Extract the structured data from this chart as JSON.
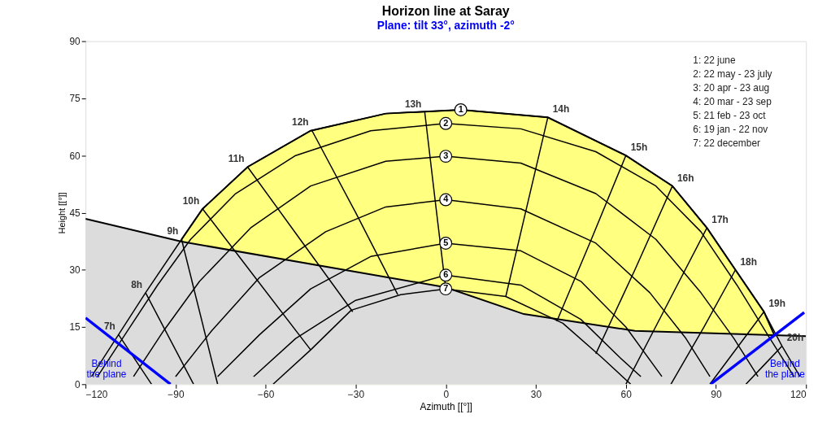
{
  "chart_data": {
    "type": "line",
    "title": "Horizon line at Saray",
    "subtitle": "Plane: tilt 33°, azimuth -2°",
    "xlabel": "Azimuth [[°]]",
    "ylabel": "Height [[°]]",
    "xlim": [
      -120,
      120
    ],
    "xticks": [
      -120,
      -90,
      -60,
      -30,
      0,
      30,
      60,
      90,
      120
    ],
    "ylim": [
      0,
      90
    ],
    "yticks": [
      0,
      15,
      30,
      45,
      60,
      75,
      90
    ],
    "grid": false,
    "marker": "none",
    "series": [
      {
        "type": "area",
        "color": "#ffff80",
        "x": [
          -88,
          -81,
          -66,
          -45,
          -20,
          5,
          34,
          60,
          75.5,
          87,
          96.5,
          106,
          109.5
        ],
        "values": [
          38,
          46,
          57,
          66.5,
          71,
          72,
          70,
          60,
          52,
          41,
          30,
          19,
          12.8
        ]
      },
      {
        "type": "area",
        "color": "#dcdcdc",
        "x": [
          -120,
          -88,
          0,
          26,
          63,
          120
        ],
        "values": [
          43.4,
          37.4,
          25.4,
          18.4,
          14,
          12.6
        ]
      },
      {
        "type": "line",
        "color": "#000000",
        "x": [
          -118,
          -109,
          -100,
          -88,
          -81,
          -66,
          -45,
          -20,
          5,
          34,
          60,
          75.5,
          87,
          96.5,
          106,
          112,
          118
        ],
        "values": [
          2,
          13,
          24,
          38,
          46,
          57,
          66.5,
          71,
          72,
          70,
          60,
          52,
          41,
          30,
          19,
          10,
          2
        ]
      },
      {
        "type": "line",
        "color": "#000000",
        "x": [
          -116,
          -106,
          -96,
          -85,
          -70,
          -50,
          -25,
          0,
          25,
          50,
          70,
          85,
          97,
          108,
          116
        ],
        "values": [
          2,
          14,
          26,
          38,
          50,
          60,
          66.5,
          68.4,
          67,
          61,
          52,
          40,
          26,
          12,
          2
        ]
      },
      {
        "type": "line",
        "color": "#000000",
        "x": [
          -104,
          -94,
          -82,
          -65,
          -45,
          -20,
          0,
          25,
          50,
          70,
          85,
          96,
          104
        ],
        "values": [
          2,
          14,
          27,
          41,
          52,
          58.5,
          59.8,
          58,
          50,
          38,
          24,
          12,
          2
        ]
      },
      {
        "type": "line",
        "color": "#000000",
        "x": [
          -90,
          -78,
          -62,
          -40,
          -20,
          0,
          25,
          50,
          68,
          80,
          88
        ],
        "values": [
          2,
          14,
          28,
          40,
          46.5,
          48.4,
          46,
          37,
          24,
          12,
          2
        ]
      },
      {
        "type": "line",
        "color": "#000000",
        "x": [
          -76,
          -62,
          -45,
          -25,
          0,
          25,
          45,
          60,
          72
        ],
        "values": [
          2,
          13,
          25,
          33.5,
          37,
          35,
          27,
          15,
          2
        ]
      },
      {
        "type": "line",
        "color": "#000000",
        "x": [
          -64,
          -50,
          -30,
          0,
          25,
          45,
          58,
          65
        ],
        "values": [
          2,
          12,
          22,
          28.6,
          26,
          17,
          7,
          2
        ]
      },
      {
        "type": "line",
        "color": "#000000",
        "x": [
          -57.5,
          -45,
          -31.5,
          -15,
          0,
          20,
          39,
          52,
          61.6
        ],
        "values": [
          0,
          9,
          19.4,
          23.5,
          25,
          23,
          16,
          7,
          0
        ]
      },
      {
        "type": "line",
        "color": "#000000",
        "x": [
          -109,
          -103.5,
          -98
        ],
        "values": [
          13,
          6.5,
          0
        ]
      },
      {
        "type": "line",
        "color": "#000000",
        "x": [
          -100,
          -92,
          -84
        ],
        "values": [
          24,
          12,
          0
        ]
      },
      {
        "type": "line",
        "color": "#000000",
        "x": [
          -88,
          -82,
          -76
        ],
        "values": [
          38,
          19,
          0
        ]
      },
      {
        "type": "line",
        "color": "#000000",
        "x": [
          -81,
          -63,
          -45
        ],
        "values": [
          46,
          27.5,
          9
        ]
      },
      {
        "type": "line",
        "color": "#000000",
        "x": [
          -66,
          -48.5,
          -31
        ],
        "values": [
          57,
          38,
          19
        ]
      },
      {
        "type": "line",
        "color": "#000000",
        "x": [
          -44.6,
          -30,
          -16
        ],
        "values": [
          66.6,
          45,
          23.5
        ]
      },
      {
        "type": "line",
        "color": "#000000",
        "x": [
          -7,
          -3.5,
          0
        ],
        "values": [
          71.4,
          48,
          25
        ]
      },
      {
        "type": "line",
        "color": "#000000",
        "x": [
          34,
          27,
          20
        ],
        "values": [
          70,
          46.5,
          23
        ]
      },
      {
        "type": "line",
        "color": "#000000",
        "x": [
          60,
          48.5,
          37
        ],
        "values": [
          60,
          38,
          16.5
        ]
      },
      {
        "type": "line",
        "color": "#000000",
        "x": [
          75.5,
          63,
          50
        ],
        "values": [
          52,
          30,
          8
        ]
      },
      {
        "type": "line",
        "color": "#000000",
        "x": [
          87,
          73.5,
          60
        ],
        "values": [
          41,
          20.5,
          0
        ]
      },
      {
        "type": "line",
        "color": "#000000",
        "x": [
          96.5,
          86,
          75
        ],
        "values": [
          30,
          15,
          0
        ]
      },
      {
        "type": "line",
        "color": "#000000",
        "x": [
          106,
          97,
          88
        ],
        "values": [
          19,
          9.5,
          0
        ]
      },
      {
        "type": "line",
        "color": "#000000",
        "x": [
          112,
          106,
          100
        ],
        "values": [
          10,
          5,
          0
        ]
      },
      {
        "type": "line",
        "color": "#0000ff",
        "x": [
          -120,
          -91.7
        ],
        "values": [
          17.4,
          0
        ]
      },
      {
        "type": "line",
        "color": "#0000ff",
        "x": [
          88.2,
          119.4
        ],
        "values": [
          0,
          18.8
        ]
      }
    ],
    "annotations": [
      "1: 22 june",
      "2: 22 may - 23 july",
      "3: 20 apr - 23 aug",
      "4: 20 mar - 23 sep",
      "5: 21 feb - 23 oct",
      "6: 19 jan - 22 nov",
      "7: 22 december",
      {
        "text": "1",
        "x": 5,
        "y": 72
      },
      {
        "text": "2",
        "x": 0,
        "y": 68.4
      },
      {
        "text": "3",
        "x": 0,
        "y": 59.8
      },
      {
        "text": "4",
        "x": 0,
        "y": 48.4
      },
      {
        "text": "5",
        "x": 0,
        "y": 37
      },
      {
        "text": "6",
        "x": 0,
        "y": 28.6
      },
      {
        "text": "7",
        "x": 0,
        "y": 25
      },
      {
        "text": "7h",
        "x": -109,
        "y": 13
      },
      {
        "text": "8h",
        "x": -100,
        "y": 24
      },
      {
        "text": "9h",
        "x": -88,
        "y": 38
      },
      {
        "text": "10h",
        "x": -81,
        "y": 46
      },
      {
        "text": "11h",
        "x": -66,
        "y": 57
      },
      {
        "text": "12h",
        "x": -44.6,
        "y": 66.6
      },
      {
        "text": "13h",
        "x": -7,
        "y": 71.4
      },
      {
        "text": "14h",
        "x": 34,
        "y": 70
      },
      {
        "text": "15h",
        "x": 60,
        "y": 60
      },
      {
        "text": "16h",
        "x": 75.5,
        "y": 52
      },
      {
        "text": "17h",
        "x": 87,
        "y": 41
      },
      {
        "text": "18h",
        "x": 96.5,
        "y": 30
      },
      {
        "text": "19h",
        "x": 106,
        "y": 19
      },
      {
        "text": "20h",
        "x": 112,
        "y": 10
      },
      {
        "text": "Behind\nthe plane",
        "x": -113,
        "y": 4
      },
      {
        "text": "Behind\nthe plane",
        "x": 113,
        "y": 4
      }
    ]
  }
}
